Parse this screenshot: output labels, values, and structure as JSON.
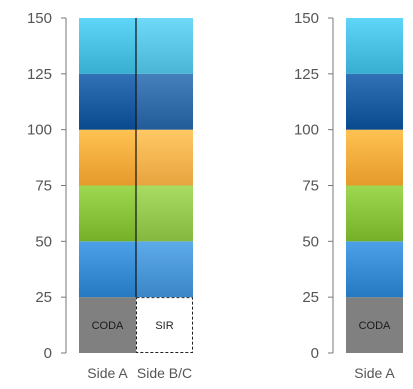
{
  "chart_data": [
    {
      "type": "stacked-bar",
      "yticks": [
        0,
        25,
        50,
        75,
        100,
        125,
        150
      ],
      "ylim": [
        0,
        150
      ],
      "grid": false,
      "segments": [
        {
          "from": 0,
          "to": 25,
          "color": "#808080"
        },
        {
          "from": 25,
          "to": 50,
          "color": "#3a8fd6"
        },
        {
          "from": 50,
          "to": 75,
          "color": "#8cc63f"
        },
        {
          "from": 75,
          "to": 100,
          "color": "#fbb040"
        },
        {
          "from": 100,
          "to": 125,
          "color": "#1f5fa3"
        },
        {
          "from": 125,
          "to": 150,
          "color": "#4dc3e6"
        }
      ],
      "columns": [
        {
          "label": "Side A",
          "base_label": "CODA"
        },
        {
          "label": "Side B/C",
          "base_label": "SIR",
          "base_style": "dashed-empty"
        }
      ]
    },
    {
      "type": "stacked-bar",
      "yticks": [
        0,
        25,
        50,
        75,
        100,
        125,
        150
      ],
      "ylim": [
        0,
        150
      ],
      "grid": false,
      "segments": [
        {
          "from": 0,
          "to": 25,
          "color": "#808080"
        },
        {
          "from": 25,
          "to": 50,
          "color": "#3a8fd6"
        },
        {
          "from": 50,
          "to": 75,
          "color": "#8cc63f"
        },
        {
          "from": 75,
          "to": 100,
          "color": "#fbb040"
        },
        {
          "from": 100,
          "to": 125,
          "color": "#1f5fa3"
        },
        {
          "from": 125,
          "to": 150,
          "color": "#4dc3e6"
        }
      ],
      "columns": [
        {
          "label": "Side A",
          "base_label": "CODA"
        }
      ]
    }
  ]
}
